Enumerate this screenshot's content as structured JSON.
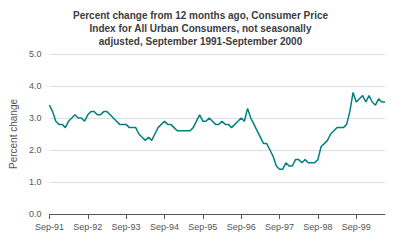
{
  "chart_data": {
    "type": "line",
    "title": "Percent change from 12 months ago, Consumer Price\nIndex for All Urban Consumers, not seasonally\nadjusted, September 1991-September 2000",
    "ylabel": "Percent change",
    "categories": [
      "Sep-91",
      null,
      null,
      null,
      null,
      null,
      null,
      null,
      null,
      null,
      null,
      null,
      "Sep-92",
      null,
      null,
      null,
      null,
      null,
      null,
      null,
      null,
      null,
      null,
      null,
      "Sep-93",
      null,
      null,
      null,
      null,
      null,
      null,
      null,
      null,
      null,
      null,
      null,
      "Sep-94",
      null,
      null,
      null,
      null,
      null,
      null,
      null,
      null,
      null,
      null,
      null,
      "Sep-95",
      null,
      null,
      null,
      null,
      null,
      null,
      null,
      null,
      null,
      null,
      null,
      "Sep-96",
      null,
      null,
      null,
      null,
      null,
      null,
      null,
      null,
      null,
      null,
      null,
      "Sep-97",
      null,
      null,
      null,
      null,
      null,
      null,
      null,
      null,
      null,
      null,
      null,
      "Sep-98",
      null,
      null,
      null,
      null,
      null,
      null,
      null,
      null,
      null,
      null,
      null,
      "Sep-99",
      null,
      null,
      null,
      null,
      null,
      null,
      null,
      null,
      null
    ],
    "values": [
      3.4,
      3.2,
      2.9,
      2.8,
      2.8,
      2.7,
      2.9,
      3.0,
      3.1,
      3.0,
      3.0,
      2.9,
      3.1,
      3.2,
      3.2,
      3.1,
      3.1,
      3.2,
      3.2,
      3.1,
      3.0,
      2.9,
      2.8,
      2.8,
      2.8,
      2.7,
      2.7,
      2.7,
      2.5,
      2.4,
      2.3,
      2.4,
      2.3,
      2.5,
      2.7,
      2.8,
      2.9,
      2.8,
      2.8,
      2.7,
      2.6,
      2.6,
      2.6,
      2.6,
      2.6,
      2.7,
      2.9,
      3.1,
      2.9,
      2.9,
      3.0,
      2.9,
      2.8,
      2.8,
      2.9,
      2.8,
      2.8,
      2.7,
      2.8,
      2.9,
      3.0,
      2.9,
      3.3,
      3.0,
      2.8,
      2.6,
      2.4,
      2.2,
      2.2,
      2.0,
      1.8,
      1.5,
      1.4,
      1.4,
      1.6,
      1.5,
      1.5,
      1.7,
      1.7,
      1.6,
      1.7,
      1.6,
      1.6,
      1.6,
      1.7,
      2.1,
      2.2,
      2.3,
      2.5,
      2.6,
      2.7,
      2.7,
      2.7,
      2.8,
      3.2,
      3.8,
      3.5,
      3.6,
      3.7,
      3.5,
      3.7,
      3.5,
      3.4,
      3.6,
      3.5,
      3.5
    ],
    "color": "#008080",
    "ylim": [
      0.0,
      5.0
    ],
    "yticks": [
      {
        "value": 0,
        "label": "0.0"
      },
      {
        "value": 1,
        "label": "1.0"
      },
      {
        "value": 2,
        "label": "2.0"
      },
      {
        "value": 3,
        "label": "3.0"
      },
      {
        "value": 4,
        "label": "4.0"
      },
      {
        "value": 5,
        "label": "5.0"
      }
    ],
    "grid": true
  }
}
